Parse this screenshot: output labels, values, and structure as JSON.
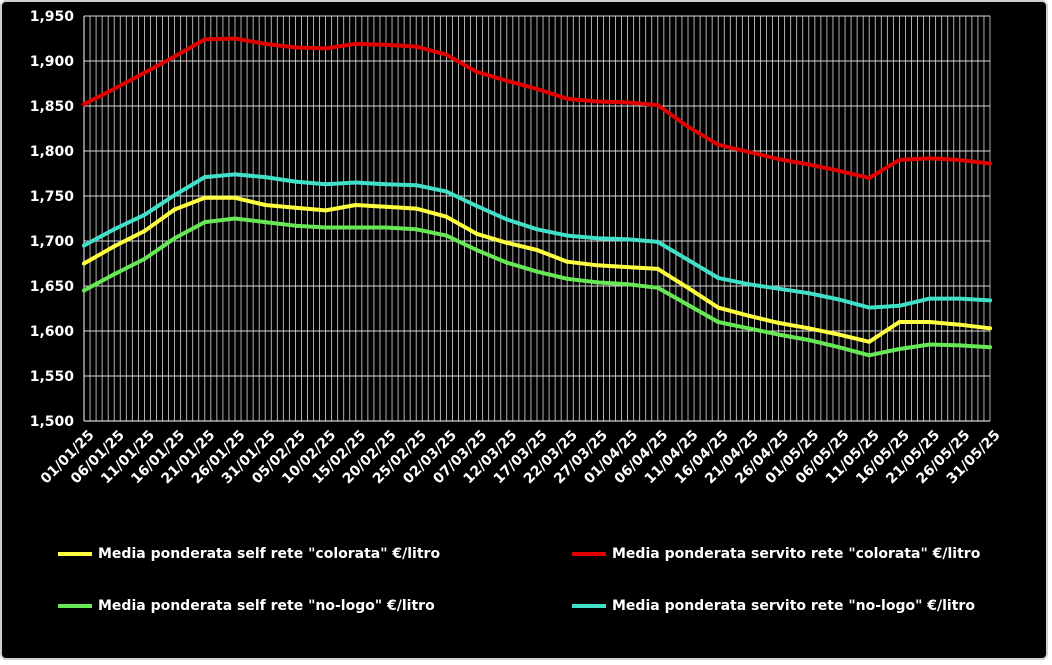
{
  "chart_data": {
    "type": "line",
    "title": "",
    "xlabel": "",
    "ylabel": "",
    "ylim": [
      1.5,
      1.95
    ],
    "yticks": [
      "1,500",
      "1,550",
      "1,600",
      "1,650",
      "1,700",
      "1,750",
      "1,800",
      "1,850",
      "1,900",
      "1,950"
    ],
    "grid": true,
    "x_tick_labels": [
      "01/01/25",
      "06/01/25",
      "11/01/25",
      "16/01/25",
      "21/01/25",
      "26/01/25",
      "31/01/25",
      "05/02/25",
      "10/02/25",
      "15/02/25",
      "20/02/25",
      "25/02/25",
      "02/03/25",
      "07/03/25",
      "12/03/25",
      "17/03/25",
      "22/03/25",
      "27/03/25",
      "01/04/25",
      "06/04/25",
      "11/04/25",
      "16/04/25",
      "21/04/25",
      "26/04/25",
      "01/05/25",
      "06/05/25",
      "11/05/25",
      "16/05/25",
      "21/05/25",
      "26/05/25",
      "31/05/25"
    ],
    "x": [
      "01/01/25",
      "06/01/25",
      "11/01/25",
      "16/01/25",
      "21/01/25",
      "26/01/25",
      "31/01/25",
      "05/02/25",
      "10/02/25",
      "15/02/25",
      "20/02/25",
      "25/02/25",
      "02/03/25",
      "07/03/25",
      "12/03/25",
      "17/03/25",
      "22/03/25",
      "27/03/25",
      "01/04/25",
      "06/04/25",
      "11/04/25",
      "16/04/25",
      "21/04/25",
      "26/04/25",
      "01/05/25",
      "06/05/25",
      "11/05/25",
      "16/05/25",
      "21/05/25",
      "26/05/25",
      "31/05/25"
    ],
    "legend_position": "bottom",
    "series": [
      {
        "name": "Media ponderata self rete \"colorata\" €/litro",
        "color": "#ffff40",
        "values": [
          1.675,
          1.694,
          1.711,
          1.735,
          1.748,
          1.748,
          1.74,
          1.737,
          1.734,
          1.74,
          1.738,
          1.736,
          1.727,
          1.708,
          1.698,
          1.69,
          1.677,
          1.673,
          1.671,
          1.669,
          1.648,
          1.626,
          1.617,
          1.609,
          1.603,
          1.596,
          1.588,
          1.61,
          1.61,
          1.607,
          1.603
        ]
      },
      {
        "name": "Media ponderata servito rete \"colorata\" €/litro",
        "color": "#e00000",
        "values": [
          1.852,
          1.869,
          1.887,
          1.905,
          1.924,
          1.925,
          1.919,
          1.915,
          1.914,
          1.919,
          1.918,
          1.916,
          1.907,
          1.888,
          1.878,
          1.869,
          1.858,
          1.855,
          1.854,
          1.851,
          1.827,
          1.807,
          1.799,
          1.791,
          1.785,
          1.778,
          1.77,
          1.79,
          1.792,
          1.79,
          1.786
        ]
      },
      {
        "name": "Media ponderata self rete \"no-logo\" €/litro",
        "color": "#66e855",
        "values": [
          1.645,
          1.663,
          1.68,
          1.703,
          1.721,
          1.725,
          1.721,
          1.717,
          1.715,
          1.715,
          1.715,
          1.713,
          1.706,
          1.69,
          1.676,
          1.666,
          1.658,
          1.654,
          1.652,
          1.648,
          1.629,
          1.61,
          1.603,
          1.596,
          1.59,
          1.582,
          1.573,
          1.58,
          1.585,
          1.584,
          1.582
        ]
      },
      {
        "name": "Media ponderata servito rete \"no-logo\" €/litro",
        "color": "#40e0c8",
        "values": [
          1.695,
          1.713,
          1.729,
          1.751,
          1.771,
          1.774,
          1.771,
          1.766,
          1.763,
          1.765,
          1.763,
          1.762,
          1.755,
          1.739,
          1.724,
          1.713,
          1.706,
          1.703,
          1.702,
          1.699,
          1.679,
          1.659,
          1.652,
          1.647,
          1.642,
          1.635,
          1.626,
          1.628,
          1.636,
          1.636,
          1.634
        ]
      }
    ]
  }
}
